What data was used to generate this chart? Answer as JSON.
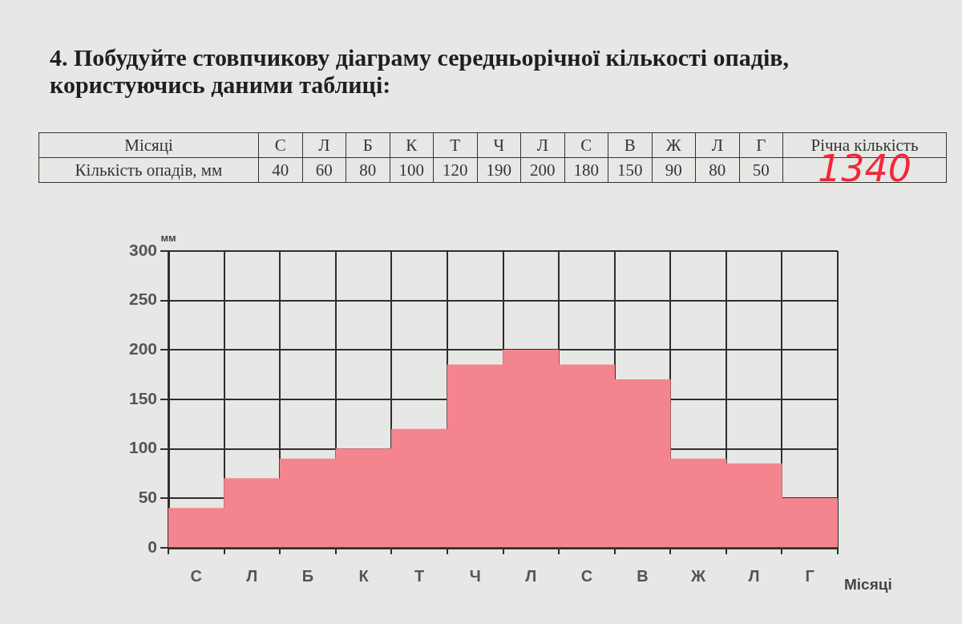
{
  "chart_data": [
    {
      "type": "other",
      "title": "4. Побудуйте стовпчикову діаграму середньорічної кількості опадів, користуючись даними таблиці:",
      "categories": [
        "С",
        "Л",
        "Б",
        "К",
        "Т",
        "Ч",
        "Л",
        "С",
        "В",
        "Ж",
        "Л",
        "Г"
      ],
      "values": [
        40,
        60,
        80,
        100,
        120,
        190,
        200,
        180,
        150,
        90,
        80,
        50
      ],
      "data_labels": true,
      "annotations": [
        "Місяці",
        "Кількість опадів, мм",
        "Річна кількість",
        "1340"
      ]
    },
    {
      "type": "bar",
      "xlabel": "Місяці",
      "ylabel": "мм",
      "categories": [
        "С",
        "Л",
        "Б",
        "К",
        "Т",
        "Ч",
        "Л",
        "С",
        "В",
        "Ж",
        "Л",
        "Г"
      ],
      "values": [
        40,
        70,
        90,
        100,
        120,
        185,
        200,
        185,
        170,
        90,
        85,
        50
      ],
      "color": "#f4858e",
      "ylim": [
        0,
        300
      ],
      "yticks": [
        0,
        50,
        100,
        150,
        200,
        250,
        300
      ],
      "grid": true
    }
  ]
}
